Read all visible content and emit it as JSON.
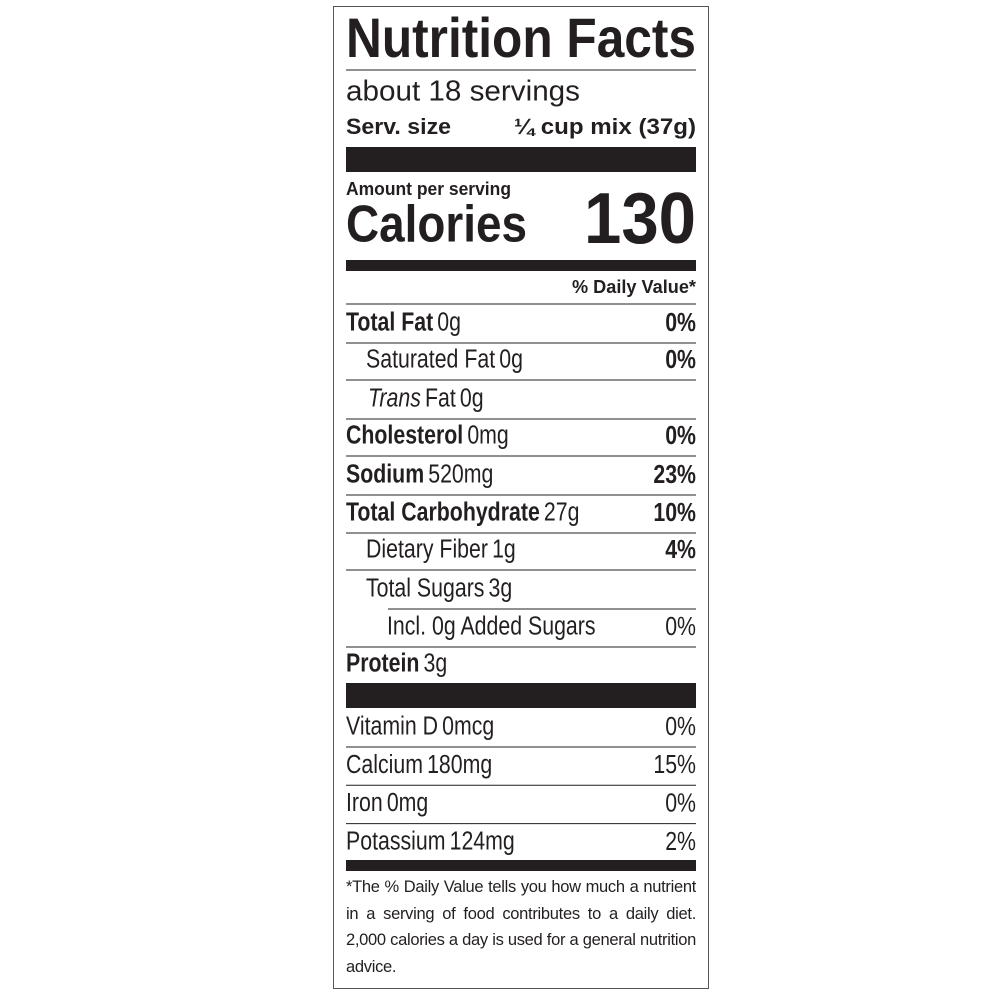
{
  "title": "Nutrition Facts",
  "servings": "about 18 servings",
  "serving_size": {
    "label": "Serv. size",
    "value": "¼ cup mix (37g)"
  },
  "amount_per_serving": "Amount per serving",
  "calories": {
    "label": "Calories",
    "value": 130
  },
  "daily_value_header": "% Daily Value*",
  "nutrients": [
    {
      "name": "Total Fat",
      "amount": "0g",
      "dv": "0%"
    },
    {
      "name": "Saturated Fat",
      "amount": "0g",
      "dv": "0%"
    },
    {
      "name_italic": "Trans",
      "name": "Fat",
      "amount": "0g"
    },
    {
      "name": "Cholesterol",
      "amount": "0mg",
      "dv": "0%"
    },
    {
      "name": "Sodium",
      "amount": "520mg",
      "dv": "23%"
    },
    {
      "name": "Total Carbohydrate",
      "amount": "27g",
      "dv": "10%"
    },
    {
      "name": "Dietary Fiber",
      "amount": "1g",
      "dv": "4%"
    },
    {
      "name": "Total Sugars",
      "amount": "3g"
    },
    {
      "name": "Incl. 0g Added Sugars",
      "dv": "0%"
    },
    {
      "name": "Protein",
      "amount": "3g"
    }
  ],
  "vitamins": [
    {
      "name": "Vitamin D",
      "amount": "0mcg",
      "dv": "0%"
    },
    {
      "name": "Calcium",
      "amount": "180mg",
      "dv": "15%"
    },
    {
      "name": "Iron",
      "amount": "0mg",
      "dv": "0%"
    },
    {
      "name": "Potassium",
      "amount": "124mg",
      "dv": "2%"
    }
  ],
  "footnote": "*The % Daily Value tells you how much a nutrient in a serving of food contributes to a daily diet. 2,000 calories a day is used for a general nutrition advice."
}
